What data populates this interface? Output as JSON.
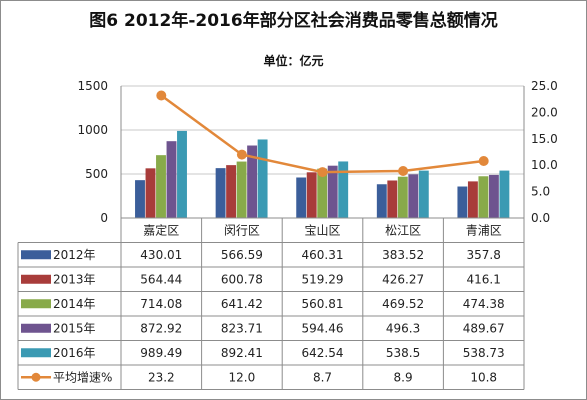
{
  "title": "图6   2012年-2016年部分区社会消费品零售总额情况",
  "unit_label": "单位：亿元",
  "colors": {
    "2012年": "#3b5e9a",
    "2013年": "#a83c3a",
    "2014年": "#88aa4a",
    "2015年": "#6e548f",
    "2016年": "#3b9ab3",
    "平均增速%": "#e2883a"
  },
  "chart_data": {
    "type": "bar",
    "categories": [
      "嘉定区",
      "闵行区",
      "宝山区",
      "松江区",
      "青浦区"
    ],
    "series": [
      {
        "name": "2012年",
        "values": [
          430.01,
          566.59,
          460.31,
          383.52,
          357.8
        ],
        "labels": [
          "430.01",
          "566.59",
          "460.31",
          "383.52",
          "357.8"
        ]
      },
      {
        "name": "2013年",
        "values": [
          564.44,
          600.78,
          519.29,
          426.27,
          416.1
        ],
        "labels": [
          "564.44",
          "600.78",
          "519.29",
          "426.27",
          "416.1"
        ]
      },
      {
        "name": "2014年",
        "values": [
          714.08,
          641.42,
          560.81,
          469.52,
          474.38
        ],
        "labels": [
          "714.08",
          "641.42",
          "560.81",
          "469.52",
          "474.38"
        ]
      },
      {
        "name": "2015年",
        "values": [
          872.92,
          823.71,
          594.46,
          496.3,
          489.67
        ],
        "labels": [
          "872.92",
          "823.71",
          "594.46",
          "496.3",
          "489.67"
        ]
      },
      {
        "name": "2016年",
        "values": [
          989.49,
          892.41,
          642.54,
          538.5,
          538.73
        ],
        "labels": [
          "989.49",
          "892.41",
          "642.54",
          "538.5",
          "538.73"
        ]
      }
    ],
    "line_series": {
      "name": "平均增速%",
      "values": [
        23.2,
        12.0,
        8.7,
        8.9,
        10.8
      ],
      "labels": [
        "23.2",
        "12.0",
        "8.7",
        "8.9",
        "10.8"
      ],
      "axis": "right"
    },
    "y_left": {
      "ticks": [
        "0",
        "500",
        "1000",
        "1500"
      ],
      "ylim": [
        0,
        1500
      ]
    },
    "y_right": {
      "ticks": [
        "0.0",
        "5.0",
        "10.0",
        "15.0",
        "20.0",
        "25.0"
      ],
      "ylim": [
        0,
        25
      ]
    },
    "data_table": true
  }
}
